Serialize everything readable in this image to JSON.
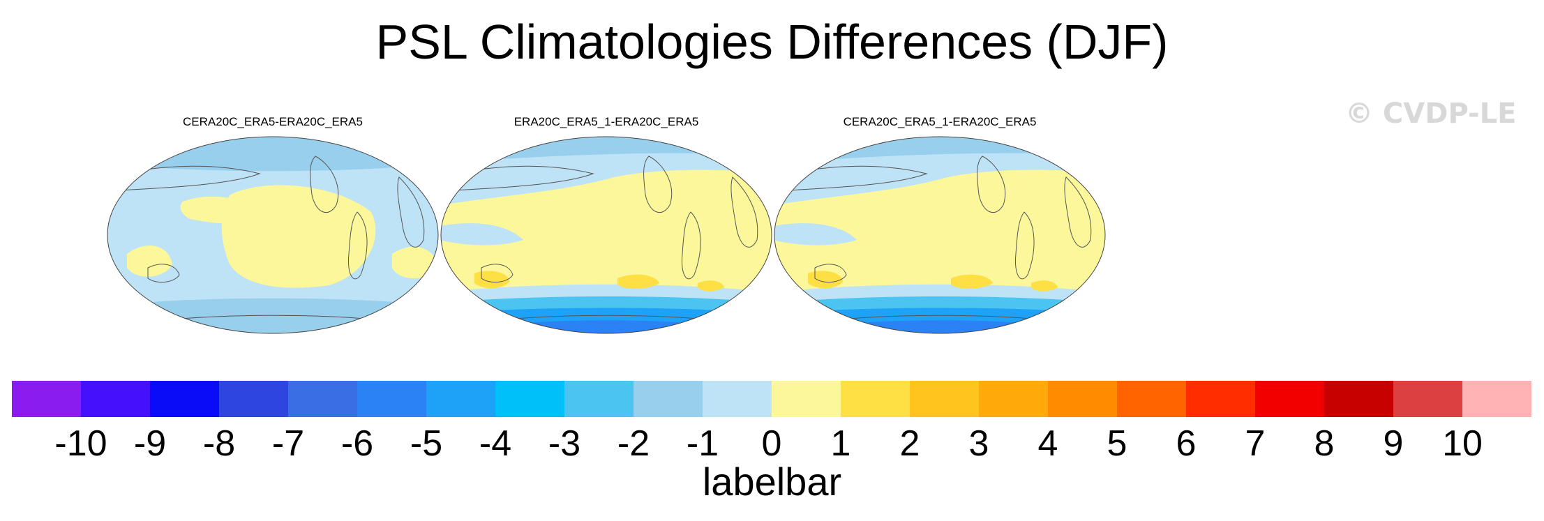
{
  "title": "PSL Climatologies Differences (DJF)",
  "watermark": "© CVDP-LE",
  "panels": [
    {
      "title": "CERA20C_ERA5-ERA20C_ERA5"
    },
    {
      "title": "ERA20C_ERA5_1-ERA20C_ERA5"
    },
    {
      "title": "CERA20C_ERA5_1-ERA20C_ERA5"
    }
  ],
  "labelbar": {
    "label": "labelbar",
    "colors": [
      "#8a1cf0",
      "#4510fb",
      "#0a0cf8",
      "#2f45e0",
      "#3a6ee4",
      "#2a82f4",
      "#1da2f8",
      "#00c0fa",
      "#4cc4f2",
      "#97cfec",
      "#bee2f6",
      "#fbf79a",
      "#ffe044",
      "#ffc41e",
      "#ffa90a",
      "#ff8c00",
      "#ff6400",
      "#ff2d00",
      "#f20000",
      "#c70000",
      "#dc4040",
      "#ffb3b4"
    ],
    "ticks": [
      "-10",
      "-9",
      "-8",
      "-7",
      "-6",
      "-5",
      "-4",
      "-3",
      "-2",
      "-1",
      "0",
      "1",
      "2",
      "3",
      "4",
      "5",
      "6",
      "7",
      "8",
      "9",
      "10"
    ]
  }
}
